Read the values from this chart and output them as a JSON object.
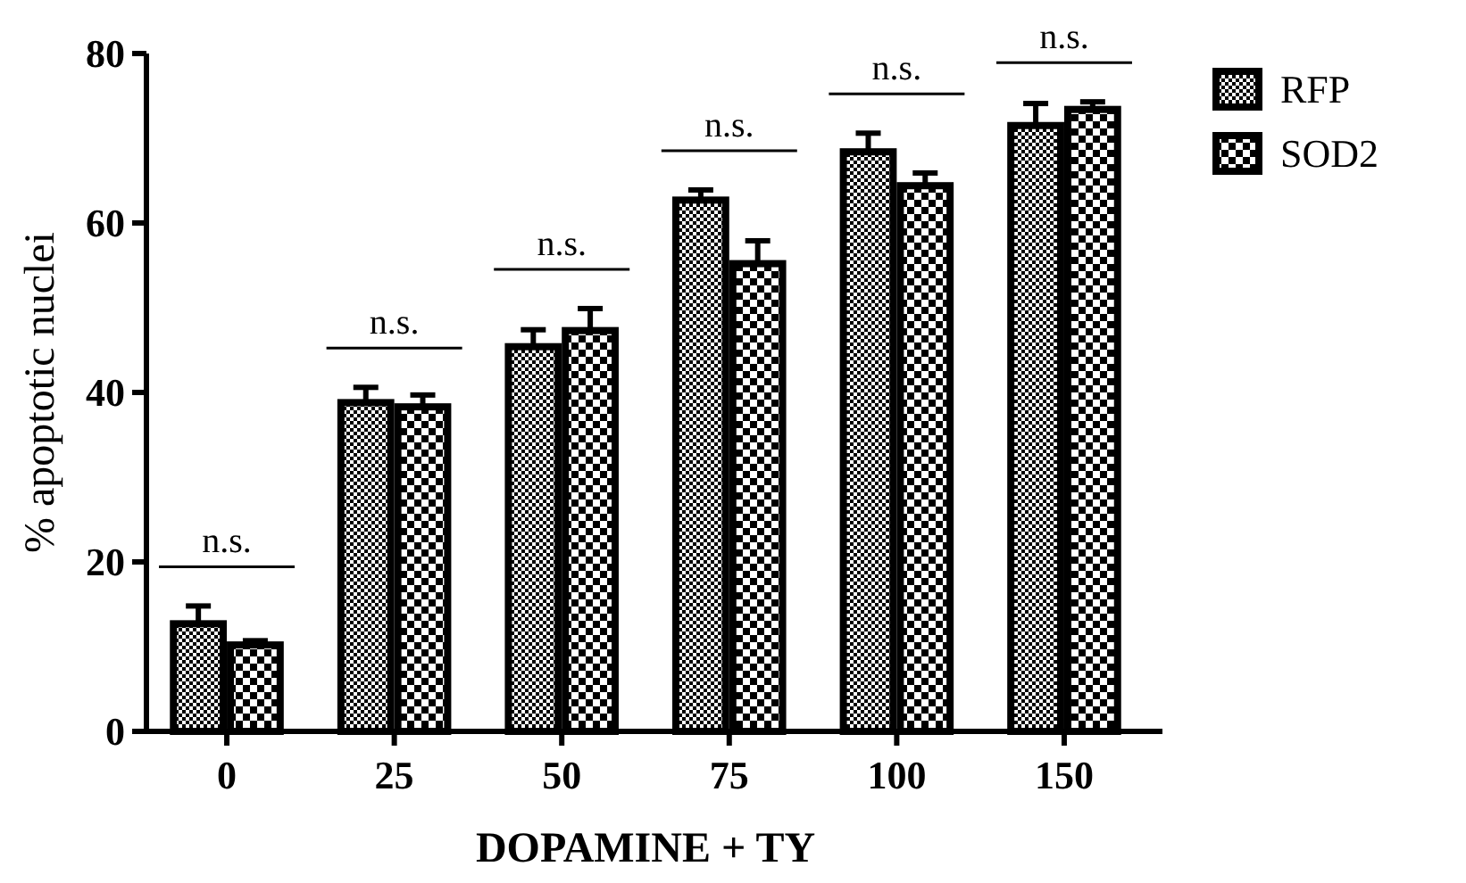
{
  "chart_data": {
    "type": "bar",
    "xlabel": "DOPAMINE + TY",
    "ylabel": "% apoptotic nuclei",
    "categories": [
      "0",
      "25",
      "50",
      "75",
      "100",
      "150"
    ],
    "series": [
      {
        "name": "RFP",
        "color": "#000000",
        "values": [
          12.7,
          38.8,
          45.4,
          62.7,
          68.4,
          71.5
        ],
        "errors": [
          2.1,
          1.8,
          2.0,
          1.2,
          2.2,
          2.6
        ]
      },
      {
        "name": "SOD2",
        "color": "#000000",
        "values": [
          10.2,
          38.3,
          47.3,
          55.2,
          64.4,
          73.4
        ],
        "errors": [
          0.5,
          1.4,
          2.6,
          2.7,
          1.5,
          0.9
        ]
      }
    ],
    "ylim": [
      0,
      80
    ],
    "yticks": [
      0,
      20,
      40,
      60,
      80
    ],
    "grid": false,
    "legend": "top right",
    "annotations": [
      "n.s.",
      "n.s.",
      "n.s.",
      "n.s.",
      "n.s.",
      "n.s."
    ]
  }
}
